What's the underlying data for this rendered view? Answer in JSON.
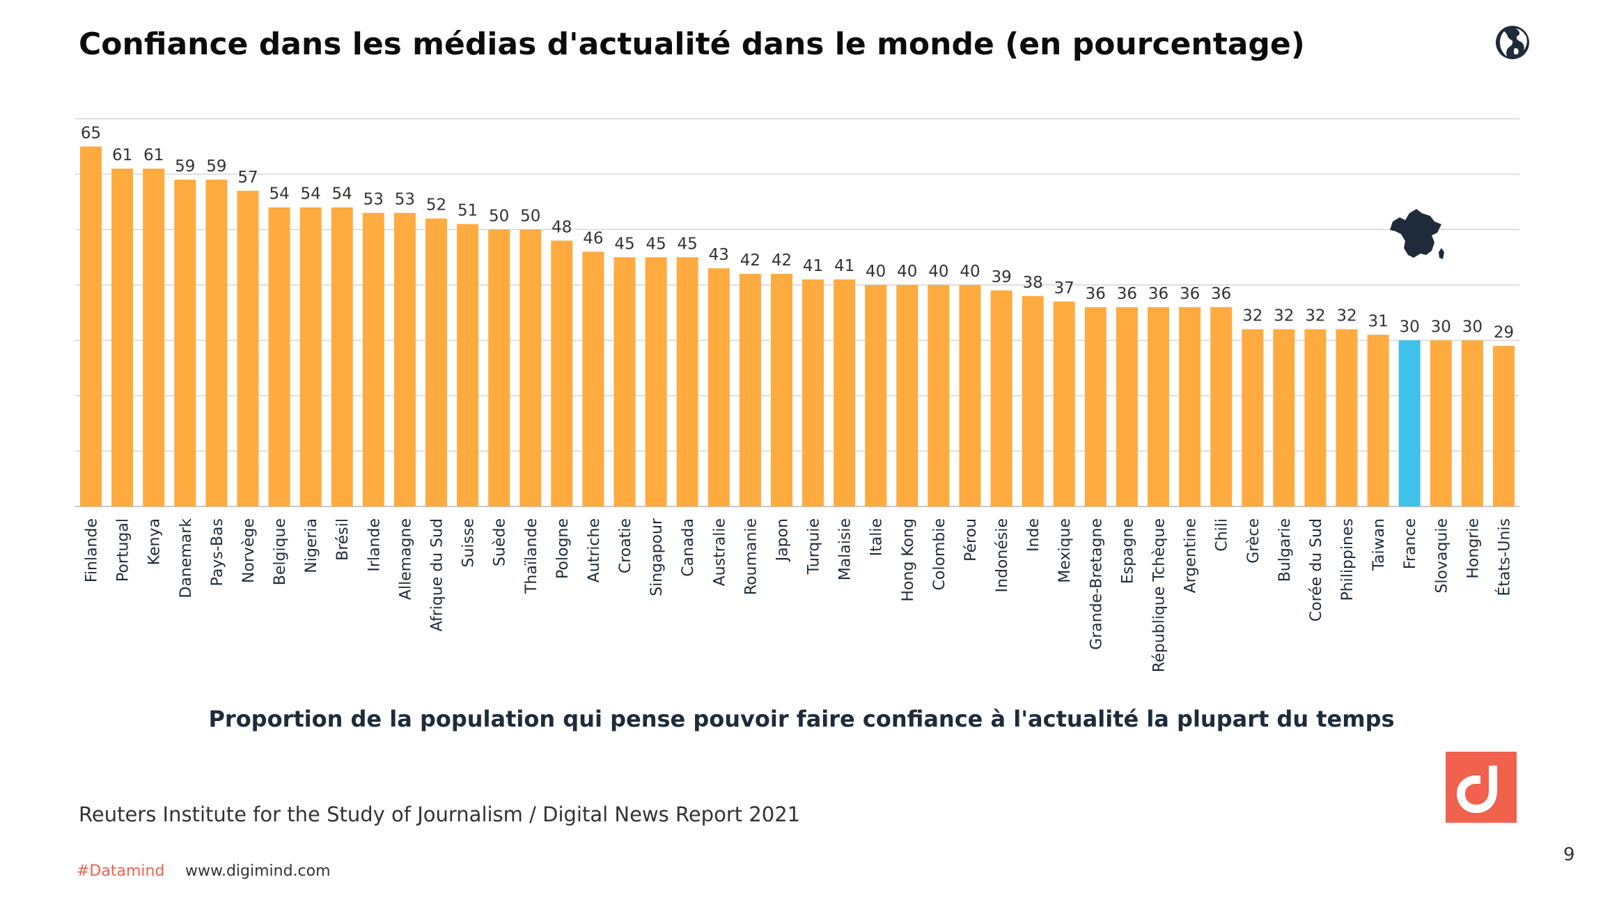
{
  "title": "Confiance dans les médias d'actualité dans le monde (en pourcentage)",
  "subtitle": "Proportion de la population qui pense pouvoir faire confiance à l'actualité la plupart du temps",
  "source": "Reuters Institute for the Study of Journalism / Digital News Report 2021",
  "footer": {
    "tag": "#Datamind",
    "url": "www.digimind.com",
    "page": "9"
  },
  "icons": {
    "globe": "globe-icon",
    "logo": "digimind-logo-icon",
    "map": "france-map-icon"
  },
  "colors": {
    "bar": "#ffab40",
    "highlight": "#3fc1ea",
    "logo": "#f0614e",
    "title": "#0c0c0c"
  },
  "chart_data": {
    "type": "bar",
    "categories": [
      "Finlande",
      "Portugal",
      "Kenya",
      "Danemark",
      "Pays-Bas",
      "Norvège",
      "Belgique",
      "Nigeria",
      "Brésil",
      "Irlande",
      "Allemagne",
      "Afrique du Sud",
      "Suisse",
      "Suède",
      "Thaïlande",
      "Pologne",
      "Autriche",
      "Croatie",
      "Singapour",
      "Canada",
      "Australie",
      "Roumanie",
      "Japon",
      "Turquie",
      "Malaisie",
      "Italie",
      "Hong Kong",
      "Colombie",
      "Pérou",
      "Indonésie",
      "Inde",
      "Mexique",
      "Grande-Bretagne",
      "Espagne",
      "République Tchèque",
      "Argentine",
      "Chili",
      "Grèce",
      "Bulgarie",
      "Corée du Sud",
      "Philippines",
      "Taiwan",
      "France",
      "Slovaquie",
      "Hongrie",
      "États-Unis"
    ],
    "values": [
      65,
      61,
      61,
      59,
      59,
      57,
      54,
      54,
      54,
      53,
      53,
      52,
      51,
      50,
      50,
      48,
      46,
      45,
      45,
      45,
      43,
      42,
      42,
      41,
      41,
      40,
      40,
      40,
      40,
      39,
      38,
      37,
      36,
      36,
      36,
      36,
      36,
      32,
      32,
      32,
      32,
      31,
      30,
      30,
      30,
      29
    ],
    "highlight_category": "France",
    "ylim": [
      0,
      70
    ],
    "grid": true,
    "legend": "none"
  }
}
